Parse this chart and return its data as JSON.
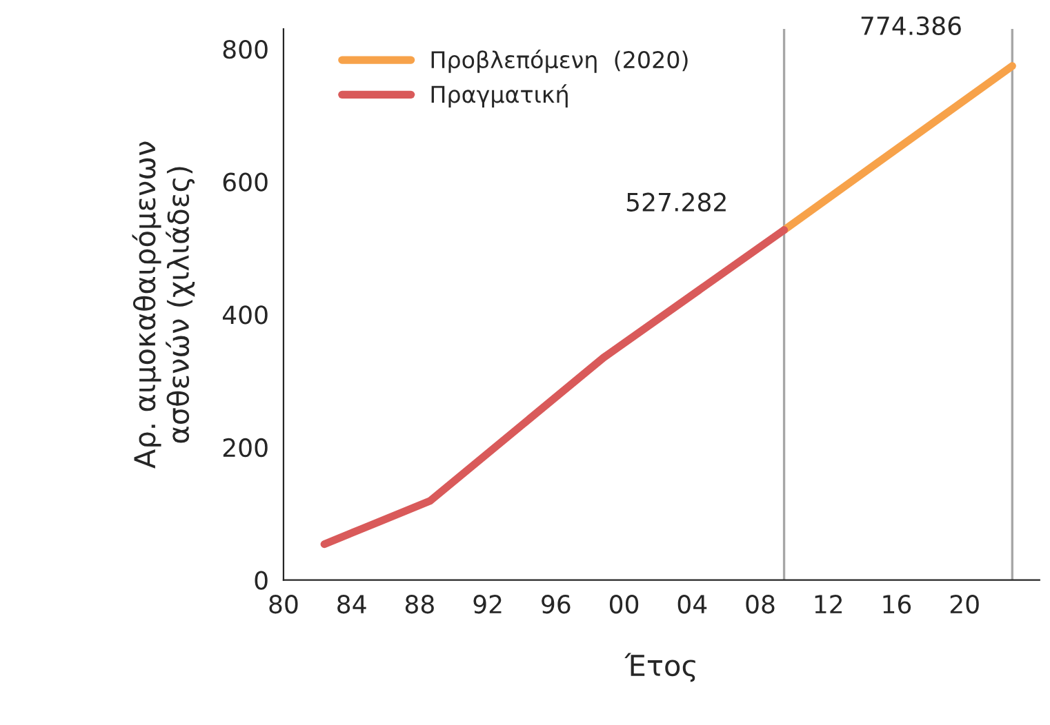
{
  "chart_data": {
    "type": "line",
    "xlabel": "Έτος",
    "ylabel": "Αρ. αιμοκαθαιρόμενων\nασθενών (χιλιάδες)",
    "series": [
      {
        "name": "Προβλεπόμενη  (2020)",
        "color": "#f7a24a",
        "x": [
          2009.4,
          2022.8
        ],
        "values": [
          527.282,
          774.386
        ]
      },
      {
        "name": "Πραγματική",
        "color": "#d95a5a",
        "x": [
          1982.4,
          1988.6,
          1998.8,
          2009.4
        ],
        "values": [
          54,
          119,
          335,
          527.282
        ]
      }
    ],
    "annotations": [
      "527.282",
      "774.386"
    ],
    "ref_lines": [
      {
        "axis": "x",
        "value": 2009.4,
        "color": "#a6a6a6"
      },
      {
        "axis": "x",
        "value": 2022.8,
        "color": "#a6a6a6"
      }
    ],
    "xlim": [
      1980,
      2024.4
    ],
    "ylim": [
      0,
      830
    ],
    "xticks": [
      {
        "value": 1980,
        "label": "80"
      },
      {
        "value": 1984,
        "label": "84"
      },
      {
        "value": 1988,
        "label": "88"
      },
      {
        "value": 1992,
        "label": "92"
      },
      {
        "value": 1996,
        "label": "96"
      },
      {
        "value": 2000,
        "label": "00"
      },
      {
        "value": 2004,
        "label": "04"
      },
      {
        "value": 2008,
        "label": "08"
      },
      {
        "value": 2012,
        "label": "12"
      },
      {
        "value": 2016,
        "label": "16"
      },
      {
        "value": 2020,
        "label": "20"
      }
    ],
    "yticks": [
      0,
      200,
      400,
      600,
      800
    ],
    "grid": false,
    "legend": "top left"
  }
}
